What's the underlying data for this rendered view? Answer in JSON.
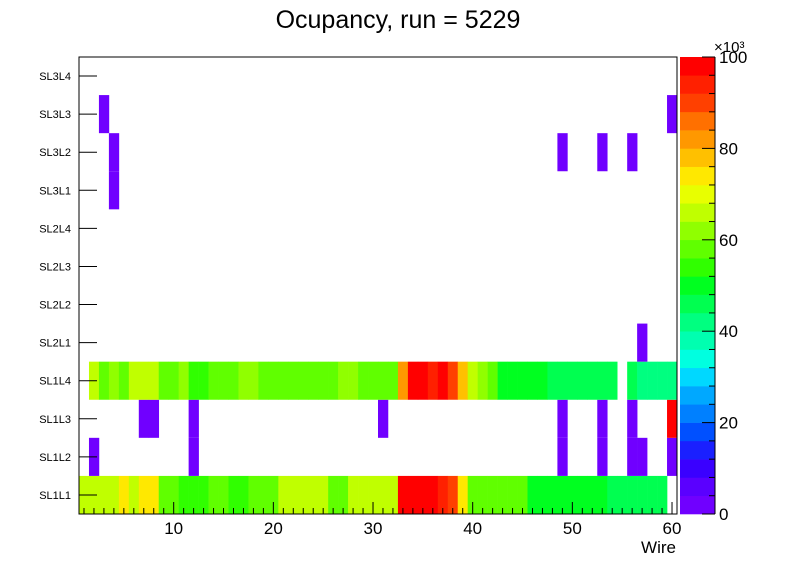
{
  "chart_data": {
    "type": "heatmap",
    "title": "Ocupancy, run = 5229",
    "xlabel": "Wire",
    "ylabel": "",
    "xlim": [
      0.5,
      60.5
    ],
    "x_ticks": [
      10,
      20,
      30,
      40,
      50,
      60
    ],
    "y_categories": [
      "SL1L1",
      "SL1L2",
      "SL1L3",
      "SL1L4",
      "SL2L1",
      "SL2L2",
      "SL2L3",
      "SL2L4",
      "SL3L1",
      "SL3L2",
      "SL3L3",
      "SL3L4"
    ],
    "z_range": [
      0,
      100
    ],
    "z_ticks": [
      0,
      20,
      40,
      60,
      80,
      100
    ],
    "z_multiplier": "×10³",
    "palette": [
      "#7000ff",
      "#5a00ff",
      "#3a00ff",
      "#1a20ff",
      "#0050ff",
      "#0080ff",
      "#00a8ff",
      "#00d8ff",
      "#00ffe0",
      "#00ffb0",
      "#00ff80",
      "#00ff50",
      "#00ff20",
      "#30ff00",
      "#60ff00",
      "#90ff00",
      "#c0ff00",
      "#e8ff00",
      "#ffe800",
      "#ffc000",
      "#ff9800",
      "#ff7000",
      "#ff4000",
      "#ff2000",
      "#ff0000"
    ],
    "rows": {
      "SL1L1": [
        64,
        64,
        64,
        64,
        72,
        64,
        72,
        72,
        56,
        56,
        52,
        52,
        52,
        56,
        56,
        52,
        52,
        56,
        56,
        56,
        64,
        64,
        64,
        64,
        64,
        56,
        56,
        64,
        64,
        64,
        64,
        64,
        100,
        100,
        100,
        100,
        92,
        88,
        72,
        56,
        56,
        56,
        56,
        56,
        56,
        48,
        48,
        48,
        48,
        48,
        48,
        48,
        48,
        44,
        44,
        44,
        44,
        44,
        44,
        0
      ],
      "SL1L2": [
        0,
        2,
        0,
        0,
        0,
        0,
        0,
        0,
        0,
        0,
        0,
        2,
        0,
        0,
        0,
        0,
        0,
        0,
        0,
        0,
        0,
        0,
        0,
        0,
        0,
        0,
        0,
        0,
        0,
        0,
        0,
        0,
        0,
        0,
        0,
        0,
        0,
        0,
        0,
        0,
        0,
        0,
        0,
        0,
        0,
        0,
        0,
        0,
        2,
        0,
        0,
        0,
        2,
        0,
        0,
        2,
        2,
        0,
        0,
        2
      ],
      "SL1L3": [
        0,
        0,
        0,
        0,
        0,
        0,
        2,
        2,
        0,
        0,
        0,
        2,
        0,
        0,
        0,
        0,
        0,
        0,
        0,
        0,
        0,
        0,
        0,
        0,
        0,
        0,
        0,
        0,
        0,
        0,
        2,
        0,
        0,
        0,
        0,
        0,
        0,
        0,
        0,
        0,
        0,
        0,
        0,
        0,
        0,
        0,
        0,
        0,
        2,
        0,
        0,
        0,
        2,
        0,
        0,
        2,
        0,
        0,
        0,
        100
      ],
      "SL1L4": [
        0,
        64,
        56,
        60,
        56,
        64,
        64,
        64,
        56,
        56,
        60,
        52,
        52,
        56,
        56,
        56,
        60,
        60,
        56,
        56,
        56,
        56,
        56,
        56,
        56,
        56,
        60,
        60,
        56,
        56,
        56,
        56,
        80,
        100,
        100,
        92,
        100,
        88,
        76,
        64,
        60,
        56,
        48,
        48,
        48,
        48,
        48,
        44,
        44,
        44,
        44,
        44,
        44,
        44,
        0,
        44,
        40,
        40,
        40,
        40
      ],
      "SL2L1": [
        0,
        0,
        0,
        0,
        0,
        0,
        0,
        0,
        0,
        0,
        0,
        0,
        0,
        0,
        0,
        0,
        0,
        0,
        0,
        0,
        0,
        0,
        0,
        0,
        0,
        0,
        0,
        0,
        0,
        0,
        0,
        0,
        0,
        0,
        0,
        0,
        0,
        0,
        0,
        0,
        0,
        0,
        0,
        0,
        0,
        0,
        0,
        0,
        0,
        0,
        0,
        0,
        0,
        0,
        0,
        0,
        2,
        0,
        0,
        0
      ],
      "SL2L2": [],
      "SL2L3": [],
      "SL2L4": [],
      "SL3L1": [
        0,
        0,
        0,
        2,
        0,
        0,
        0,
        0,
        0,
        0,
        0,
        0,
        0,
        0,
        0,
        0,
        0,
        0,
        0,
        0,
        0,
        0,
        0,
        0,
        0,
        0,
        0,
        0,
        0,
        0,
        0,
        0,
        0,
        0,
        0,
        0,
        0,
        0,
        0,
        0,
        0,
        0,
        0,
        0,
        0,
        0,
        0,
        0,
        0,
        0,
        0,
        0,
        0,
        0,
        0,
        0,
        0,
        0,
        0,
        0
      ],
      "SL3L2": [
        0,
        0,
        0,
        2,
        0,
        0,
        0,
        0,
        0,
        0,
        0,
        0,
        0,
        0,
        0,
        0,
        0,
        0,
        0,
        0,
        0,
        0,
        0,
        0,
        0,
        0,
        0,
        0,
        0,
        0,
        0,
        0,
        0,
        0,
        0,
        0,
        0,
        0,
        0,
        0,
        0,
        0,
        0,
        0,
        0,
        0,
        0,
        0,
        2,
        0,
        0,
        0,
        2,
        0,
        0,
        2,
        0,
        0,
        0,
        0
      ],
      "SL3L3": [
        0,
        0,
        2,
        0,
        0,
        0,
        0,
        0,
        0,
        0,
        0,
        0,
        0,
        0,
        0,
        0,
        0,
        0,
        0,
        0,
        0,
        0,
        0,
        0,
        0,
        0,
        0,
        0,
        0,
        0,
        0,
        0,
        0,
        0,
        0,
        0,
        0,
        0,
        0,
        0,
        0,
        0,
        0,
        0,
        0,
        0,
        0,
        0,
        0,
        0,
        0,
        0,
        0,
        0,
        0,
        0,
        0,
        0,
        0,
        2
      ],
      "SL3L4": []
    }
  }
}
